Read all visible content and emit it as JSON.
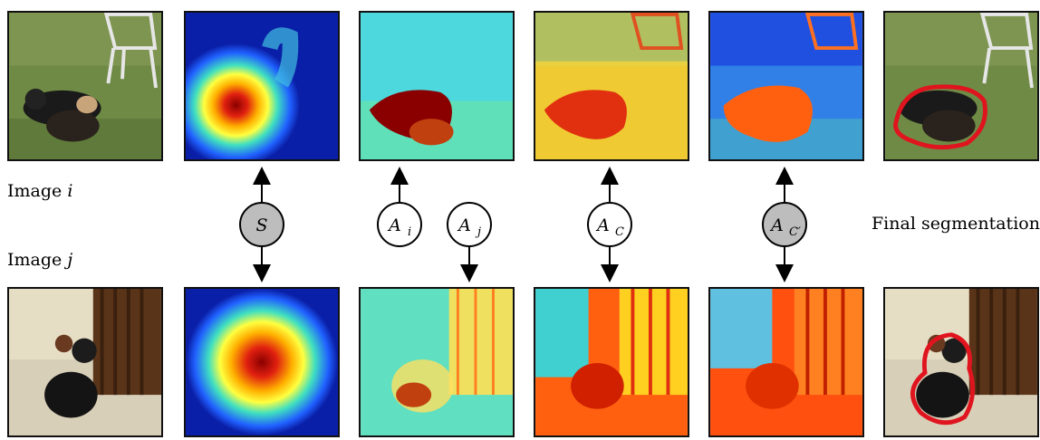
{
  "labels": {
    "image_i": "Image",
    "image_i_var": "i",
    "image_j": "Image",
    "image_j_var": "j",
    "final": "Final segmentation"
  },
  "nodes": [
    {
      "id": "s",
      "symbol": "S",
      "sub": "",
      "shaded": true
    },
    {
      "id": "ai",
      "symbol": "A",
      "sub": "i",
      "shaded": false
    },
    {
      "id": "aj",
      "symbol": "A",
      "sub": "j",
      "shaded": false
    },
    {
      "id": "ac",
      "symbol": "A",
      "sub": "C",
      "shaded": false
    },
    {
      "id": "acp",
      "symbol": "A",
      "sub": "C′",
      "shaded": true
    }
  ],
  "colors": {
    "node_shaded": "#bdbdbd",
    "node_plain": "#ffffff",
    "segmentation_outline": "#e0141e",
    "grass": "#6f8a45",
    "heat_low": "#0a1fa8",
    "heat_high": "#8a0000"
  },
  "tiles": [
    {
      "name": "photo-i",
      "kind": "photo-grass"
    },
    {
      "name": "heatmap-i",
      "kind": "heatmap-i"
    },
    {
      "name": "affinity-ai",
      "kind": "affinity-cyan"
    },
    {
      "name": "affinity-ac-i",
      "kind": "affinity-yellow"
    },
    {
      "name": "affinity-acp-i",
      "kind": "affinity-blue"
    },
    {
      "name": "segmentation-i",
      "kind": "seg-grass"
    },
    {
      "name": "photo-j",
      "kind": "photo-room"
    },
    {
      "name": "heatmap-j",
      "kind": "heatmap-j"
    },
    {
      "name": "affinity-aj",
      "kind": "affinity-cyan-room"
    },
    {
      "name": "affinity-ac-j",
      "kind": "affinity-orange"
    },
    {
      "name": "affinity-acp-j",
      "kind": "affinity-red"
    },
    {
      "name": "segmentation-j",
      "kind": "seg-room"
    }
  ]
}
